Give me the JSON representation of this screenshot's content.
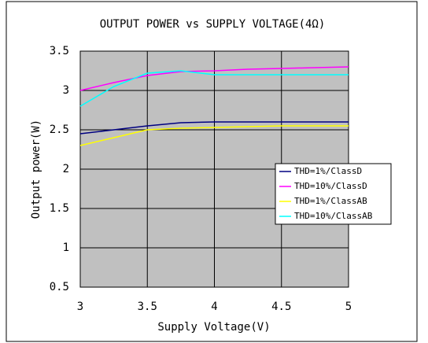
{
  "chart_data": {
    "type": "line",
    "title": "OUTPUT POWER vs SUPPLY VOLTAGE(4Ω)",
    "x_label": "Supply Voltage(V)",
    "y_label": "Output power(W)",
    "x": [
      3,
      3.25,
      3.5,
      3.75,
      4,
      4.25,
      4.5,
      4.75,
      5
    ],
    "series": [
      {
        "name": "THD=1%/ClassD",
        "color": "#000080",
        "values": [
          2.45,
          2.5,
          2.55,
          2.59,
          2.6,
          2.6,
          2.6,
          2.6,
          2.6
        ]
      },
      {
        "name": "THD=10%/ClassD",
        "color": "#ff00ff",
        "values": [
          3.0,
          3.1,
          3.19,
          3.24,
          3.25,
          3.27,
          3.28,
          3.29,
          3.3
        ]
      },
      {
        "name": "THD=1%/ClassAB",
        "color": "#ffff00",
        "values": [
          2.3,
          2.4,
          2.5,
          2.52,
          2.53,
          2.54,
          2.55,
          2.55,
          2.55
        ]
      },
      {
        "name": "THD=10%/ClassAB",
        "color": "#00ffff",
        "values": [
          2.8,
          3.05,
          3.22,
          3.25,
          3.2,
          3.2,
          3.2,
          3.2,
          3.2
        ]
      }
    ],
    "xlim": [
      3,
      5
    ],
    "xticks": [
      3,
      3.5,
      4,
      4.5,
      5
    ],
    "ylim": [
      0.5,
      3.5
    ],
    "yticks": [
      0.5,
      1,
      1.5,
      2,
      2.5,
      3,
      3.5
    ],
    "grid": true,
    "plot_background": "#c0c0c0",
    "legend_position": "right"
  }
}
